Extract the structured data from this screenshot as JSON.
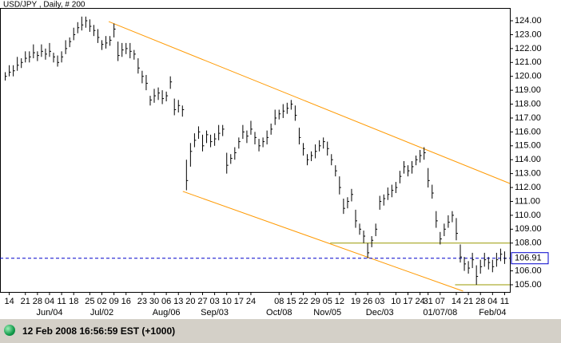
{
  "chart_data": {
    "type": "ohlc",
    "title": "USD/JPY , Daily, # 200",
    "color": "#000000",
    "high": [
      120.3,
      120.8,
      120.8,
      121.4,
      121.3,
      121.8,
      121.8,
      122.3,
      121.8,
      122.3,
      122.0,
      122.4,
      121.7,
      121.5,
      121.8,
      122.6,
      122.8,
      123.5,
      123.9,
      124.3,
      124.3,
      124.1,
      123.7,
      123.4,
      122.6,
      122.9,
      122.9,
      123.8,
      122.5,
      122.4,
      122.4,
      122.4,
      121.9,
      121.3,
      120.4,
      120.1,
      118.6,
      119.1,
      119.2,
      119.0,
      118.9,
      120.0,
      118.4,
      118.3,
      117.9,
      114.0,
      115.2,
      115.9,
      116.4,
      115.8,
      116.1,
      115.8,
      115.9,
      116.5,
      116.5,
      114.5,
      114.4,
      114.9,
      115.6,
      116.5,
      116.1,
      116.8,
      116.0,
      115.5,
      115.6,
      116.1,
      116.6,
      117.6,
      117.6,
      118.0,
      118.1,
      118.3,
      117.9,
      116.3,
      115.2,
      114.4,
      114.6,
      115.1,
      115.4,
      115.6,
      115.3,
      114.4,
      113.6,
      112.8,
      111.2,
      111.3,
      111.9,
      110.4,
      109.4,
      108.9,
      108.0,
      108.5,
      109.4,
      111.4,
      111.5,
      112.0,
      112.2,
      112.4,
      113.2,
      113.9,
      113.6,
      113.9,
      114.3,
      114.7,
      114.9,
      113.4,
      112.2,
      110.3,
      108.8,
      109.4,
      110.0,
      110.3,
      109.8,
      107.9,
      107.0,
      106.7,
      107.3,
      106.4,
      106.8,
      107.3,
      107.0,
      106.8,
      107.3,
      107.6,
      107.4
    ],
    "low": [
      119.7,
      120.0,
      120.0,
      120.4,
      120.6,
      121.0,
      121.0,
      121.3,
      121.1,
      121.4,
      121.2,
      121.4,
      121.0,
      120.7,
      121.0,
      121.6,
      122.1,
      122.6,
      123.1,
      123.3,
      123.5,
      123.2,
      122.9,
      122.4,
      121.9,
      122.0,
      122.2,
      122.8,
      121.1,
      121.4,
      121.6,
      121.3,
      121.2,
      120.2,
      119.5,
      119.0,
      117.9,
      118.1,
      118.3,
      118.0,
      118.2,
      119.1,
      117.2,
      117.4,
      117.1,
      111.8,
      113.5,
      114.9,
      115.5,
      114.6,
      115.2,
      114.9,
      115.0,
      115.4,
      115.7,
      113.0,
      113.7,
      114.0,
      114.8,
      115.5,
      115.2,
      115.8,
      115.1,
      114.6,
      114.9,
      115.1,
      115.8,
      116.5,
      116.9,
      117.0,
      117.3,
      117.6,
      116.8,
      115.1,
      114.3,
      113.6,
      113.9,
      114.1,
      114.6,
      114.8,
      114.3,
      113.6,
      112.8,
      111.5,
      110.1,
      110.5,
      111.0,
      109.1,
      108.6,
      108.0,
      106.9,
      107.7,
      108.5,
      110.4,
      110.7,
      111.1,
      111.3,
      111.6,
      112.3,
      113.0,
      112.8,
      113.0,
      113.6,
      113.8,
      114.0,
      112.0,
      111.2,
      109.1,
      107.9,
      108.5,
      109.1,
      109.5,
      108.2,
      106.6,
      106.0,
      105.8,
      106.2,
      105.0,
      105.8,
      106.3,
      106.1,
      105.9,
      106.3,
      106.7,
      106.5
    ],
    "close": [
      120.0,
      120.3,
      120.4,
      120.8,
      121.0,
      121.3,
      121.4,
      121.7,
      121.5,
      121.8,
      121.6,
      121.8,
      121.4,
      121.0,
      121.4,
      122.0,
      122.5,
      123.0,
      123.5,
      123.7,
      124.0,
      123.6,
      123.3,
      122.8,
      122.3,
      122.4,
      122.6,
      123.4,
      121.5,
      121.9,
      122.0,
      121.8,
      121.6,
      120.6,
      120.0,
      119.5,
      118.3,
      118.6,
      118.8,
      118.4,
      118.6,
      119.6,
      117.6,
      117.9,
      117.6,
      112.5,
      114.6,
      115.4,
      116.0,
      115.0,
      115.8,
      115.3,
      115.5,
      115.9,
      116.2,
      113.6,
      114.1,
      114.5,
      115.3,
      116.0,
      115.7,
      116.2,
      115.6,
      115.0,
      115.3,
      115.6,
      116.2,
      117.0,
      117.3,
      117.5,
      117.7,
      118.0,
      117.2,
      115.6,
      114.8,
      114.0,
      114.3,
      114.6,
      115.0,
      115.3,
      114.8,
      114.0,
      113.2,
      112.0,
      110.5,
      111.0,
      111.5,
      109.6,
      109.0,
      108.5,
      107.3,
      108.2,
      109.0,
      111.0,
      111.2,
      111.5,
      111.8,
      112.0,
      112.8,
      113.5,
      113.2,
      113.5,
      114.0,
      114.3,
      114.5,
      112.5,
      111.6,
      109.6,
      108.3,
      109.0,
      109.5,
      110.0,
      108.7,
      107.0,
      106.5,
      106.2,
      106.8,
      105.6,
      106.3,
      106.8,
      106.6,
      106.3,
      106.8,
      107.2,
      106.9
    ],
    "xlim": [
      -1.3,
      125.3
    ],
    "ylim": [
      104.54,
      124.92
    ],
    "yticks": [
      {
        "value": 124,
        "label": "124.00"
      },
      {
        "value": 123,
        "label": "123.00"
      },
      {
        "value": 122,
        "label": "122.00"
      },
      {
        "value": 121,
        "label": "121.00"
      },
      {
        "value": 120,
        "label": "120.00"
      },
      {
        "value": 119,
        "label": "119.00"
      },
      {
        "value": 118,
        "label": "118.00"
      },
      {
        "value": 117,
        "label": "117.00"
      },
      {
        "value": 116,
        "label": "116.00"
      },
      {
        "value": 115,
        "label": "115.00"
      },
      {
        "value": 114,
        "label": "114.00"
      },
      {
        "value": 113,
        "label": "113.00"
      },
      {
        "value": 112,
        "label": "112.00"
      },
      {
        "value": 111,
        "label": "111.00"
      },
      {
        "value": 110,
        "label": "110.00"
      },
      {
        "value": 109,
        "label": "109.00"
      },
      {
        "value": 108,
        "label": "108.00"
      },
      {
        "value": 106,
        "label": "106.00"
      },
      {
        "value": 105,
        "label": "105.00"
      }
    ],
    "xticks": [
      {
        "value": 1,
        "label": "14"
      },
      {
        "value": 5,
        "label": "21"
      },
      {
        "value": 8,
        "label": "28"
      },
      {
        "value": 11,
        "label": "04"
      },
      {
        "value": 14,
        "label": "11"
      },
      {
        "value": 17,
        "label": "18"
      },
      {
        "value": 21,
        "label": "25"
      },
      {
        "value": 24,
        "label": "02"
      },
      {
        "value": 27,
        "label": "09"
      },
      {
        "value": 30,
        "label": "16"
      },
      {
        "value": 34,
        "label": "23"
      },
      {
        "value": 37,
        "label": "30"
      },
      {
        "value": 40,
        "label": "06"
      },
      {
        "value": 43,
        "label": "13"
      },
      {
        "value": 46,
        "label": "20"
      },
      {
        "value": 49,
        "label": "27"
      },
      {
        "value": 52,
        "label": "03"
      },
      {
        "value": 55,
        "label": "10"
      },
      {
        "value": 58,
        "label": "17"
      },
      {
        "value": 61,
        "label": "24"
      },
      {
        "value": 68,
        "label": "08"
      },
      {
        "value": 71,
        "label": "15"
      },
      {
        "value": 74,
        "label": "22"
      },
      {
        "value": 77,
        "label": "29"
      },
      {
        "value": 80,
        "label": "05"
      },
      {
        "value": 83,
        "label": "12"
      },
      {
        "value": 87,
        "label": "19"
      },
      {
        "value": 90,
        "label": "26"
      },
      {
        "value": 93,
        "label": "03"
      },
      {
        "value": 97,
        "label": "10"
      },
      {
        "value": 100,
        "label": "17"
      },
      {
        "value": 103,
        "label": "24"
      },
      {
        "value": 105,
        "label": "31"
      },
      {
        "value": 108,
        "label": "07"
      },
      {
        "value": 112,
        "label": "14"
      },
      {
        "value": 115,
        "label": "21"
      },
      {
        "value": 118,
        "label": "28"
      },
      {
        "value": 121,
        "label": "04"
      },
      {
        "value": 124,
        "label": "11"
      }
    ],
    "month_ticks": [
      {
        "value": 11,
        "label": "Jun/04"
      },
      {
        "value": 24,
        "label": "Jul/02"
      },
      {
        "value": 40,
        "label": "Aug/06"
      },
      {
        "value": 52,
        "label": "Sep/03"
      },
      {
        "value": 68,
        "label": "Oct/08"
      },
      {
        "value": 80,
        "label": "Nov/05"
      },
      {
        "value": 93,
        "label": "Dec/03"
      },
      {
        "value": 108,
        "label": "01/07/08"
      },
      {
        "value": 121,
        "label": "Feb/04"
      }
    ],
    "trendlines": [
      {
        "x": [
          25.7,
          125.3
        ],
        "y": [
          123.94,
          112.29
        ]
      },
      {
        "x": [
          44.1,
          113.7
        ],
        "y": [
          111.72,
          104.54
        ]
      }
    ],
    "trendline_color": "#ff9900",
    "levels": [
      {
        "from": 80.7,
        "value": 108.0
      },
      {
        "from": 111.7,
        "value": 105.0
      }
    ],
    "level_color": "#999900",
    "last_price": 106.91,
    "last_price_color": "#0000cc"
  },
  "status_bar": {
    "text": "12 Feb 2008 16:56:59  EST (+1000)"
  }
}
